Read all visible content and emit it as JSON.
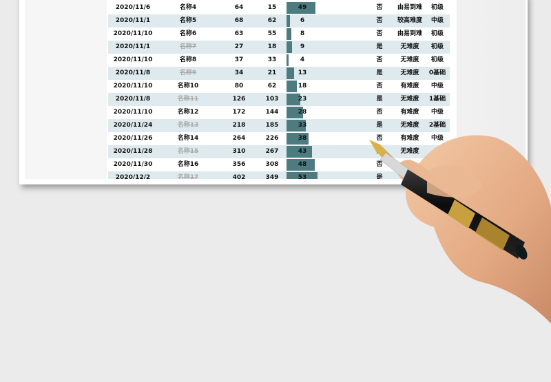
{
  "rows": [
    {
      "date": "2020/11/6",
      "name": "名称4",
      "a": "64",
      "b": "15",
      "v": "49",
      "value": 49,
      "yn": "否",
      "diff": "由易到难",
      "lvl": "初级",
      "del": false
    },
    {
      "date": "2020/11/1",
      "name": "名称5",
      "a": "68",
      "b": "62",
      "v": "6",
      "value": 6,
      "yn": "否",
      "diff": "较高难度",
      "lvl": "中级",
      "del": false
    },
    {
      "date": "2020/11/10",
      "name": "名称6",
      "a": "63",
      "b": "55",
      "v": "8",
      "value": 8,
      "yn": "否",
      "diff": "由易到难",
      "lvl": "初级",
      "del": false
    },
    {
      "date": "2020/11/1",
      "name": "名称7",
      "a": "27",
      "b": "18",
      "v": "9",
      "value": 9,
      "yn": "是",
      "diff": "无难度",
      "lvl": "初级",
      "del": true
    },
    {
      "date": "2020/11/10",
      "name": "名称8",
      "a": "37",
      "b": "33",
      "v": "4",
      "value": 4,
      "yn": "否",
      "diff": "无难度",
      "lvl": "初级",
      "del": false
    },
    {
      "date": "2020/11/8",
      "name": "名称9",
      "a": "34",
      "b": "21",
      "v": "13",
      "value": 13,
      "yn": "是",
      "diff": "无难度",
      "lvl": "0基础",
      "del": true
    },
    {
      "date": "2020/11/10",
      "name": "名称10",
      "a": "80",
      "b": "62",
      "v": "18",
      "value": 18,
      "yn": "否",
      "diff": "有难度",
      "lvl": "中级",
      "del": false
    },
    {
      "date": "2020/11/8",
      "name": "名称11",
      "a": "126",
      "b": "103",
      "v": "23",
      "value": 23,
      "yn": "是",
      "diff": "无难度",
      "lvl": "1基础",
      "del": true
    },
    {
      "date": "2020/11/10",
      "name": "名称12",
      "a": "172",
      "b": "144",
      "v": "28",
      "value": 28,
      "yn": "否",
      "diff": "有难度",
      "lvl": "中级",
      "del": false
    },
    {
      "date": "2020/11/24",
      "name": "名称13",
      "a": "218",
      "b": "185",
      "v": "33",
      "value": 33,
      "yn": "是",
      "diff": "无难度",
      "lvl": "2基础",
      "del": true
    },
    {
      "date": "2020/11/26",
      "name": "名称14",
      "a": "264",
      "b": "226",
      "v": "38",
      "value": 38,
      "yn": "否",
      "diff": "有难度",
      "lvl": "中级",
      "del": false
    },
    {
      "date": "2020/11/28",
      "name": "名称15",
      "a": "310",
      "b": "267",
      "v": "43",
      "value": 43,
      "yn": "是",
      "diff": "无难度",
      "lvl": "",
      "del": true
    },
    {
      "date": "2020/11/30",
      "name": "名称16",
      "a": "356",
      "b": "308",
      "v": "48",
      "value": 48,
      "yn": "否",
      "diff": "",
      "lvl": "",
      "del": false
    },
    {
      "date": "2020/12/2",
      "name": "名称17",
      "a": "402",
      "b": "349",
      "v": "53",
      "value": 53,
      "yn": "是",
      "diff": "",
      "lvl": "",
      "del": true
    }
  ],
  "bar_color": "#4d7b80",
  "row_alt_color": "#dfeaee"
}
